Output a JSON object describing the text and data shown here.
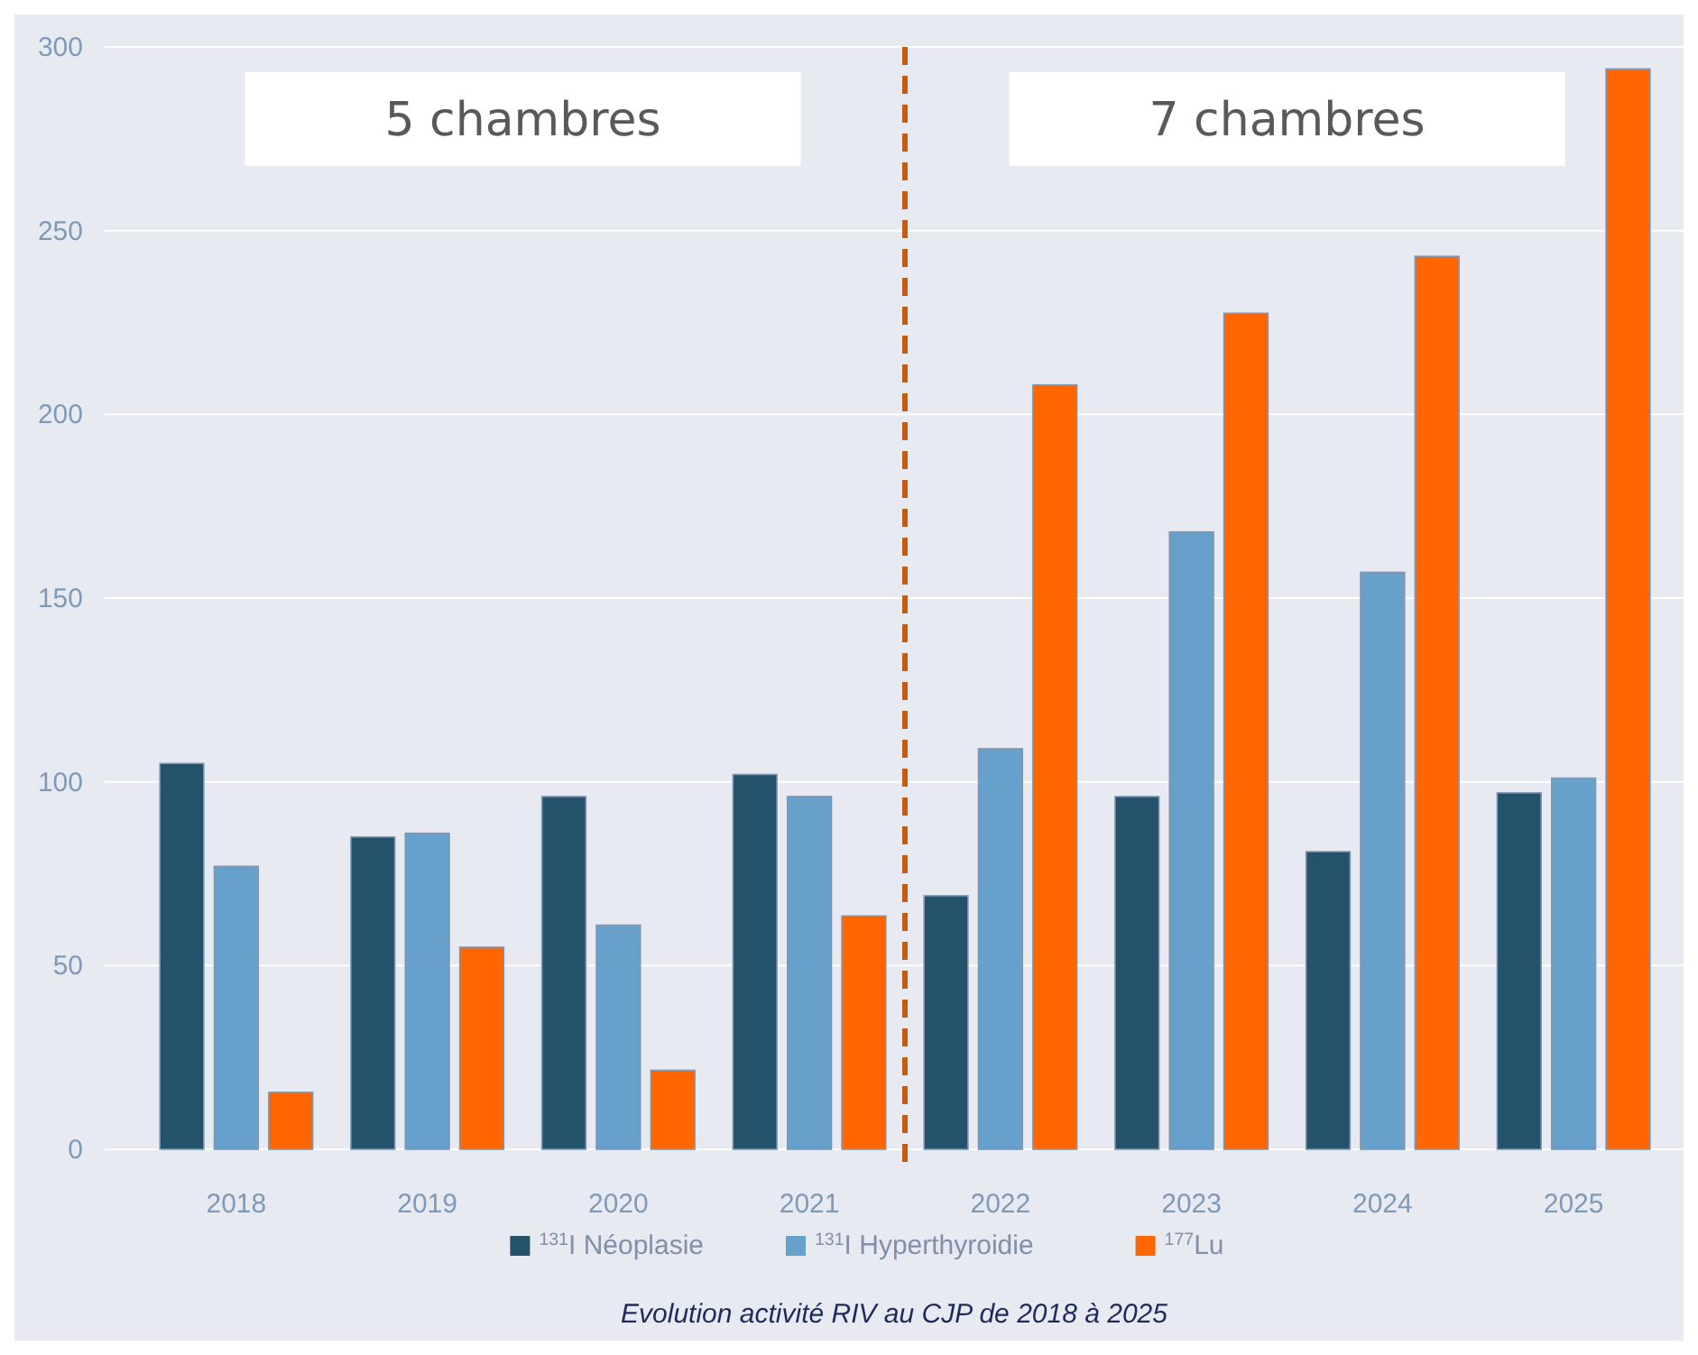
{
  "chart_data": {
    "type": "bar",
    "categories": [
      "2018",
      "2019",
      "2020",
      "2021",
      "2022",
      "2023",
      "2024",
      "2025"
    ],
    "series": [
      {
        "name": "$^{131}$I Néoplasie",
        "color": "#23526a",
        "values": [
          105,
          85,
          96,
          102,
          69,
          96,
          81,
          97
        ]
      },
      {
        "name": "$^{131}$I Hyperthyroidie",
        "color": "#67a1cb",
        "values": [
          77,
          86,
          61,
          96,
          109,
          168,
          157,
          101
        ]
      },
      {
        "name": "$^{177}$Lu",
        "color": "#ff6600",
        "values": [
          15.5,
          55,
          21.5,
          63.5,
          208,
          227.5,
          243,
          294
        ]
      }
    ],
    "ylim": [
      0,
      300
    ],
    "yticks": [
      0,
      50,
      100,
      150,
      200,
      250,
      300
    ],
    "grid": "y",
    "legend": "bottom",
    "annotations": [
      "5 chambres",
      "7 chambres",
      "Evolution activité RIV au CJP de 2018 à 2025"
    ]
  }
}
